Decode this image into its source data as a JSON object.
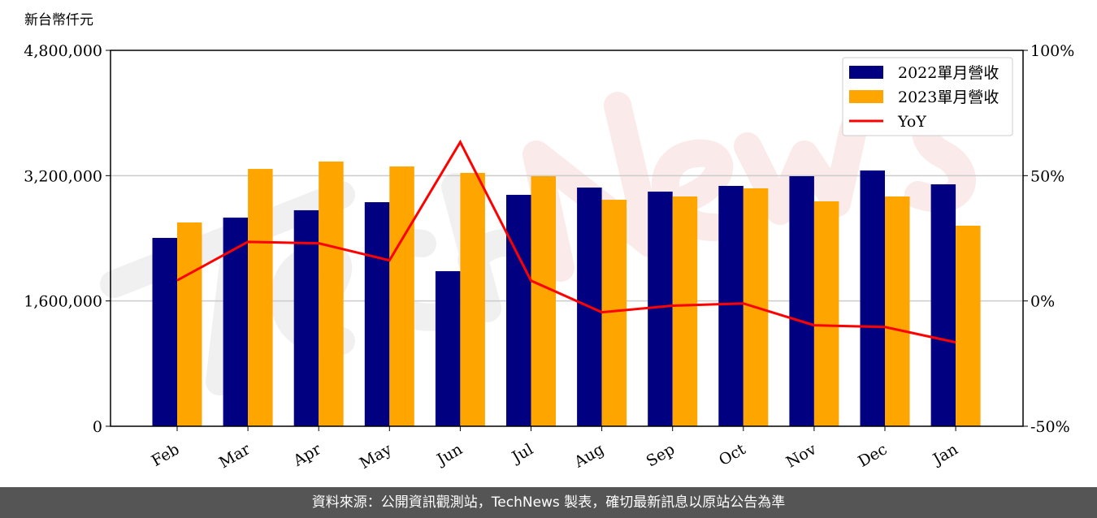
{
  "chart_data": {
    "type": "bar",
    "ylabel": "新台幣仟元",
    "categories": [
      "Feb",
      "Mar",
      "Apr",
      "May",
      "Jun",
      "Jul",
      "Aug",
      "Sep",
      "Oct",
      "Nov",
      "Dec",
      "Jan"
    ],
    "series": [
      {
        "name": "2022單月營收",
        "type": "bar",
        "axis": "left",
        "color": "#000080",
        "values": [
          2405000,
          2664000,
          2758000,
          2861000,
          1980000,
          2955000,
          3048000,
          2996000,
          3069000,
          3193000,
          3266000,
          3089000
        ]
      },
      {
        "name": "2023單月營收",
        "type": "bar",
        "axis": "left",
        "color": "#FFA500",
        "values": [
          2602000,
          3286000,
          3380000,
          3317000,
          3235000,
          3193000,
          2892000,
          2934000,
          3038000,
          2872000,
          2934000,
          2561000
        ]
      },
      {
        "name": "YoY",
        "type": "line",
        "axis": "right",
        "color": "#FF0000",
        "values": [
          8.2,
          23.6,
          23.0,
          16.2,
          63.4,
          8.1,
          -4.5,
          -1.9,
          -1.0,
          -9.7,
          -10.4,
          -16.5
        ]
      }
    ],
    "ylim": [
      0,
      4800000
    ],
    "yticks": [
      "0",
      "1,600,000",
      "3,200,000",
      "4,800,000"
    ],
    "ytick_values": [
      0,
      1600000,
      3200000,
      4800000
    ],
    "y2lim": [
      -50,
      100
    ],
    "y2ticks": [
      "-50%",
      "0%",
      "50%",
      "100%"
    ],
    "y2tick_values": [
      -50,
      0,
      50,
      100
    ],
    "grid": "horizontal",
    "legend": "top-right"
  },
  "watermark": "TechNews",
  "footer": {
    "text": "資料來源：公開資訊觀測站，TechNews 製表，確切最新訊息以原站公告為準"
  }
}
